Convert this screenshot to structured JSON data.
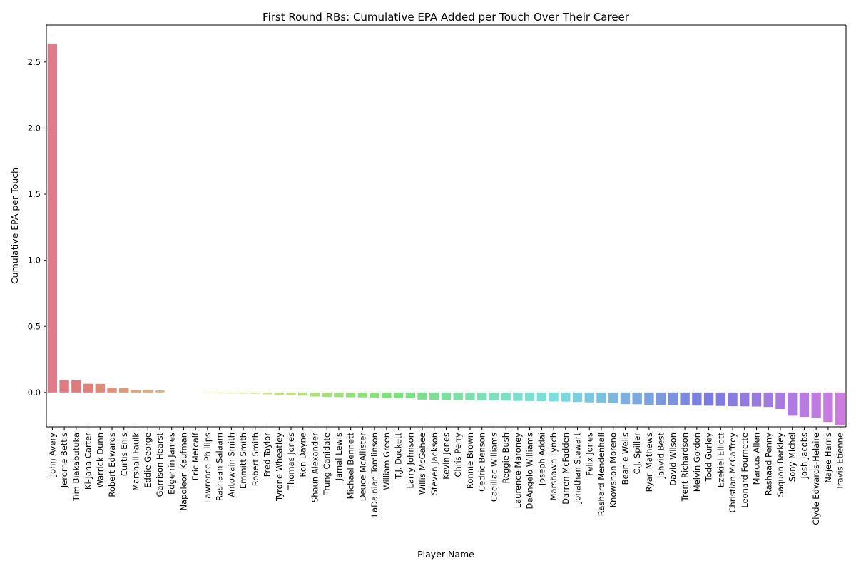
{
  "chart_data": {
    "type": "bar",
    "title": "First Round RBs: Cumulative EPA Added per Touch Over Their Career",
    "xlabel": "Player Name",
    "ylabel": "Cumulative EPA per Touch",
    "ylim": [
      -0.26,
      2.78
    ],
    "yticks": [
      "0.0",
      "0.5",
      "1.0",
      "1.5",
      "2.0",
      "2.5"
    ],
    "ytick_values": [
      0.0,
      0.5,
      1.0,
      1.5,
      2.0,
      2.5
    ],
    "grid": false,
    "categories": [
      "John Avery",
      "Jerome Bettis",
      "Tim Biakabutuka",
      "Ki-Jana Carter",
      "Warrick Dunn",
      "Robert Edwards",
      "Curtis Enis",
      "Marshall Faulk",
      "Eddie George",
      "Garrison Hearst",
      "Edgerrin James",
      "Napoleon Kaufman",
      "Eric Metcalf",
      "Lawrence Phillips",
      "Rashaan Salaam",
      "Antowain Smith",
      "Emmitt Smith",
      "Robert Smith",
      "Fred Taylor",
      "Tyrone Wheatley",
      "Thomas Jones",
      "Ron Dayne",
      "Shaun Alexander",
      "Trung Canidate",
      "Jamal Lewis",
      "Michael Bennett",
      "Deuce McAllister",
      "LaDainian Tomlinson",
      "William Green",
      "T.J. Duckett",
      "Larry Johnson",
      "Willis McGahee",
      "Steven Jackson",
      "Kevin Jones",
      "Chris Perry",
      "Ronnie Brown",
      "Cedric Benson",
      "Cadillac Williams",
      "Reggie Bush",
      "Laurence Maroney",
      "DeAngelo Williams",
      "Joseph Addai",
      "Marshawn Lynch",
      "Darren McFadden",
      "Jonathan Stewart",
      "Felix Jones",
      "Rashard Mendenhall",
      "Knowshon Moreno",
      "Beanie Wells",
      "C.J. Spiller",
      "Ryan Mathews",
      "Jahvid Best",
      "David Wilson",
      "Trent Richardson",
      "Melvin Gordon",
      "Todd Gurley",
      "Ezekiel Elliott",
      "Christian McCaffrey",
      "Leonard Fournette",
      "Marcus Allen",
      "Rashaad Penny",
      "Saquon Barkley",
      "Sony Michel",
      "Josh Jacobs",
      "Clyde Edwards-Helaire",
      "Najee Harris",
      "Travis Etienne"
    ],
    "values": [
      2.64,
      0.093,
      0.092,
      0.066,
      0.065,
      0.034,
      0.032,
      0.02,
      0.019,
      0.015,
      0.0,
      0.0,
      0.0,
      -0.004,
      -0.007,
      -0.008,
      -0.009,
      -0.01,
      -0.014,
      -0.018,
      -0.02,
      -0.024,
      -0.031,
      -0.034,
      -0.035,
      -0.036,
      -0.037,
      -0.038,
      -0.043,
      -0.043,
      -0.044,
      -0.054,
      -0.055,
      -0.057,
      -0.058,
      -0.059,
      -0.061,
      -0.061,
      -0.062,
      -0.064,
      -0.065,
      -0.066,
      -0.068,
      -0.069,
      -0.072,
      -0.075,
      -0.076,
      -0.081,
      -0.088,
      -0.089,
      -0.094,
      -0.095,
      -0.097,
      -0.098,
      -0.099,
      -0.1,
      -0.102,
      -0.104,
      -0.105,
      -0.106,
      -0.11,
      -0.125,
      -0.176,
      -0.185,
      -0.19,
      -0.223,
      -0.25
    ],
    "palette": "husl"
  }
}
